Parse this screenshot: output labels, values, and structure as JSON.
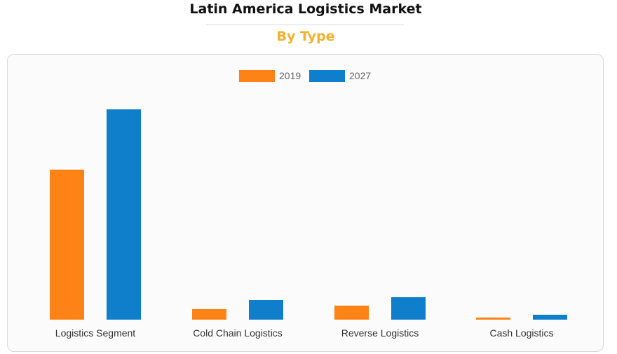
{
  "page": {
    "title": "Latin America Logistics Market",
    "subtitle": "By Type"
  },
  "colors": {
    "series_2019": "#fd8316",
    "series_2027": "#0f7fcb",
    "subtitle": "#f5b02c"
  },
  "chart_data": {
    "type": "bar",
    "categories": [
      "Logistics Segment",
      "Cold Chain Logistics",
      "Reverse Logistics",
      "Cash Logistics"
    ],
    "series": [
      {
        "name": "2019",
        "values": [
          214,
          15,
          20,
          3
        ]
      },
      {
        "name": "2027",
        "values": [
          300,
          28,
          32,
          7
        ]
      }
    ],
    "title": "",
    "xlabel": "",
    "ylabel": "",
    "ylim": [
      0,
      300
    ],
    "grid": false,
    "legend": "top-center"
  }
}
